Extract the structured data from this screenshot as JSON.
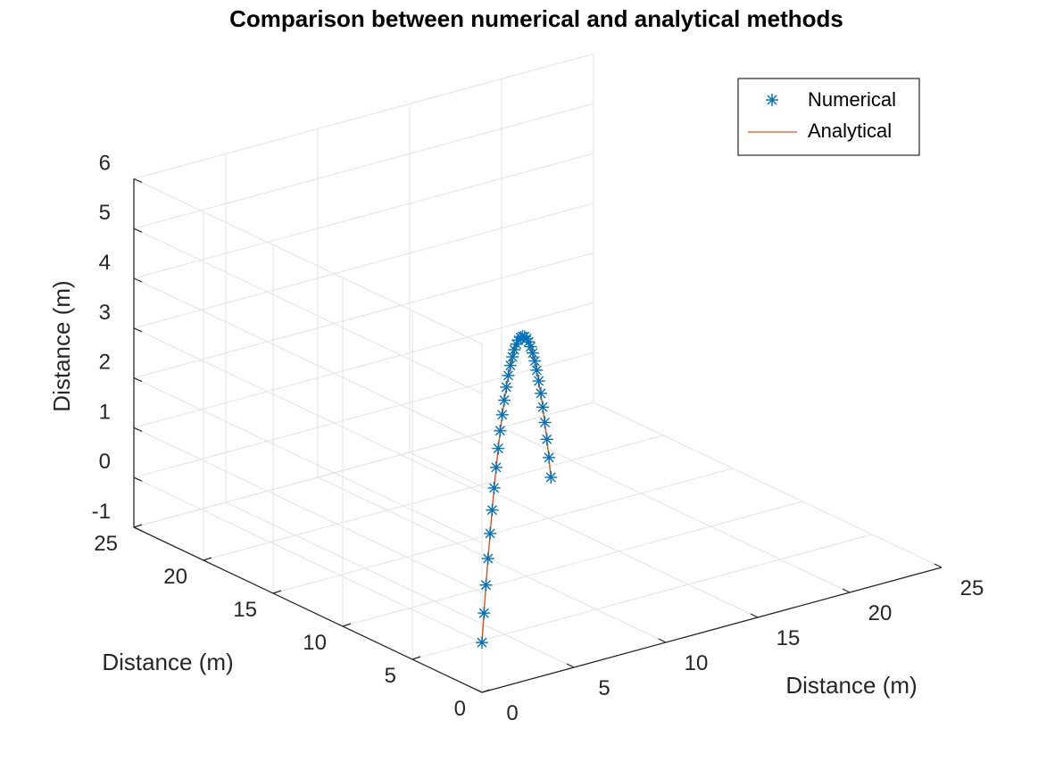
{
  "colors": {
    "numerical": "#0072BD",
    "analytical": "#D95319",
    "grid": "#e3e3e3",
    "axis": "#262626"
  },
  "chart_data": {
    "type": "scatter3d",
    "title": "Comparison between numerical and analytical methods",
    "xlabel": "Distance (m)",
    "ylabel": "Distance (m)",
    "zlabel": "Distance (m)",
    "xlim": [
      0,
      25
    ],
    "ylim": [
      0,
      25
    ],
    "zlim": [
      -1,
      6
    ],
    "xticks": [
      0,
      5,
      10,
      15,
      20,
      25
    ],
    "yticks": [
      0,
      5,
      10,
      15,
      20,
      25
    ],
    "zticks": [
      -1,
      0,
      1,
      2,
      3,
      4,
      5,
      6
    ],
    "xtick_labels": [
      "0",
      "5",
      "10",
      "15",
      "20",
      "25"
    ],
    "ytick_labels": [
      "0",
      "5",
      "10",
      "15",
      "20",
      "25"
    ],
    "ztick_labels": [
      "-1",
      "0",
      "1",
      "2",
      "3",
      "4",
      "5",
      "6"
    ],
    "grid": true,
    "legend_position": "top-right",
    "series": [
      {
        "name": "Numerical",
        "kind": "marker",
        "marker": "asterisk",
        "points": [
          [
            0.0,
            0.0,
            0.0
          ],
          [
            0.37,
            0.34,
            0.51
          ],
          [
            0.74,
            0.69,
            0.99
          ],
          [
            1.11,
            1.03,
            1.44
          ],
          [
            1.48,
            1.37,
            1.86
          ],
          [
            1.85,
            1.71,
            2.25
          ],
          [
            2.22,
            2.06,
            2.61
          ],
          [
            2.59,
            2.4,
            2.94
          ],
          [
            2.96,
            2.74,
            3.24
          ],
          [
            3.33,
            3.09,
            3.51
          ],
          [
            3.7,
            3.43,
            3.75
          ],
          [
            4.07,
            3.77,
            3.96
          ],
          [
            4.44,
            4.11,
            4.14
          ],
          [
            4.81,
            4.46,
            4.29
          ],
          [
            5.18,
            4.8,
            4.41
          ],
          [
            5.55,
            5.14,
            4.5
          ],
          [
            5.92,
            5.49,
            4.56
          ],
          [
            6.29,
            5.83,
            4.59
          ],
          [
            6.66,
            6.17,
            4.59
          ],
          [
            7.03,
            6.51,
            4.56
          ],
          [
            7.4,
            6.86,
            4.5
          ],
          [
            7.77,
            7.2,
            4.41
          ],
          [
            8.14,
            7.54,
            4.29
          ],
          [
            8.51,
            7.89,
            4.14
          ],
          [
            8.88,
            8.23,
            3.96
          ],
          [
            9.25,
            8.57,
            3.75
          ],
          [
            9.62,
            8.91,
            3.51
          ],
          [
            9.99,
            9.26,
            3.24
          ],
          [
            10.36,
            9.6,
            2.94
          ],
          [
            10.73,
            9.94,
            2.61
          ],
          [
            11.1,
            10.29,
            2.25
          ],
          [
            11.47,
            10.63,
            1.86
          ],
          [
            11.84,
            10.97,
            1.44
          ],
          [
            12.21,
            11.31,
            0.99
          ],
          [
            12.58,
            11.66,
            0.51
          ]
        ]
      },
      {
        "name": "Analytical",
        "kind": "line",
        "points": [
          [
            0.0,
            0.0,
            0.0
          ],
          [
            0.74,
            0.69,
            0.99
          ],
          [
            1.48,
            1.37,
            1.86
          ],
          [
            2.22,
            2.06,
            2.61
          ],
          [
            2.96,
            2.74,
            3.24
          ],
          [
            3.7,
            3.43,
            3.75
          ],
          [
            4.44,
            4.11,
            4.14
          ],
          [
            5.18,
            4.8,
            4.41
          ],
          [
            5.92,
            5.49,
            4.56
          ],
          [
            6.66,
            6.17,
            4.59
          ],
          [
            7.4,
            6.86,
            4.5
          ],
          [
            8.14,
            7.54,
            4.29
          ],
          [
            8.88,
            8.23,
            3.96
          ],
          [
            9.62,
            8.91,
            3.51
          ],
          [
            10.36,
            9.6,
            2.94
          ],
          [
            11.1,
            10.29,
            2.25
          ],
          [
            11.84,
            10.97,
            1.44
          ],
          [
            12.58,
            11.66,
            0.51
          ]
        ]
      }
    ]
  }
}
